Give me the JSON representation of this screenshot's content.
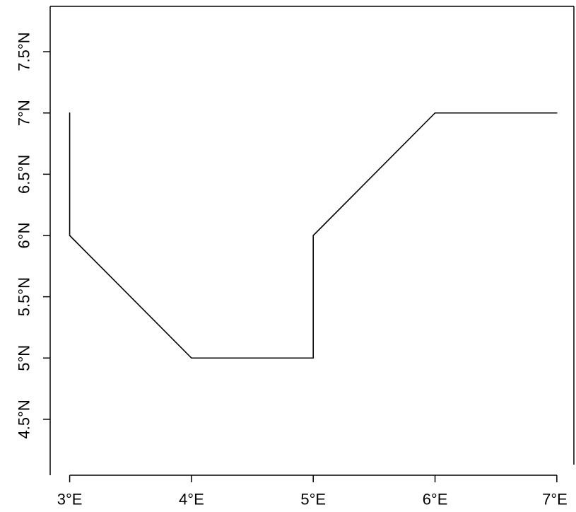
{
  "chart_data": {
    "type": "line",
    "title": "",
    "xlabel": "",
    "ylabel": "",
    "xlim": [
      2.84,
      7.14
    ],
    "ylim": [
      4.13,
      7.87
    ],
    "x_ticks": [
      {
        "value": 3,
        "label": "3°E"
      },
      {
        "value": 4,
        "label": "4°E"
      },
      {
        "value": 5,
        "label": "5°E"
      },
      {
        "value": 6,
        "label": "6°E"
      },
      {
        "value": 7,
        "label": "7°E"
      }
    ],
    "y_ticks": [
      {
        "value": 4.5,
        "label": "4.5°N"
      },
      {
        "value": 5,
        "label": "5°N"
      },
      {
        "value": 5.5,
        "label": "5.5°N"
      },
      {
        "value": 6,
        "label": "6°N"
      },
      {
        "value": 6.5,
        "label": "6.5°N"
      },
      {
        "value": 7,
        "label": "7°N"
      },
      {
        "value": 7.5,
        "label": "7.5°N"
      }
    ],
    "series": [
      {
        "color": "#000000",
        "points": [
          {
            "x": 3,
            "y": 7
          },
          {
            "x": 3,
            "y": 6
          },
          {
            "x": 4,
            "y": 5
          },
          {
            "x": 5,
            "y": 5
          },
          {
            "x": 5,
            "y": 6
          },
          {
            "x": 6,
            "y": 7
          },
          {
            "x": 7,
            "y": 7
          }
        ]
      }
    ],
    "grid": false,
    "legend": "none",
    "frame": "left-top-right"
  }
}
